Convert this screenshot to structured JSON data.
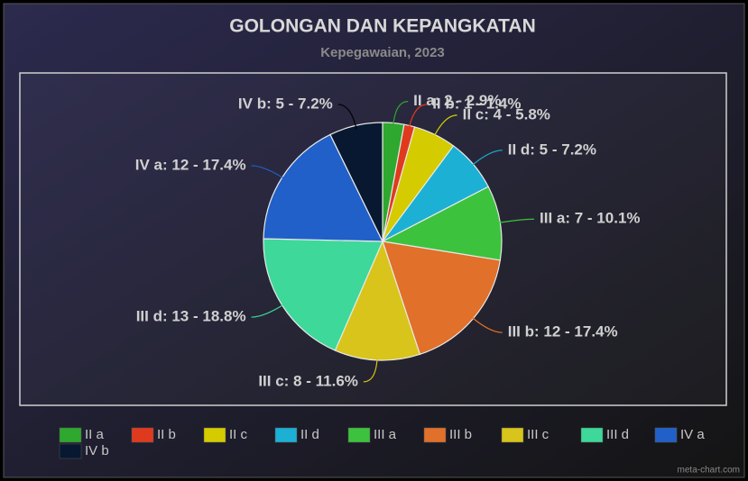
{
  "chart_data": {
    "type": "pie",
    "title": "GOLONGAN DAN KEPANGKATAN",
    "subtitle": "Kepegawaian, 2023",
    "categories": [
      "II a",
      "II b",
      "II c",
      "II d",
      "III a",
      "III b",
      "III c",
      "III d",
      "IV a",
      "IV b"
    ],
    "values": [
      2,
      1,
      4,
      5,
      7,
      12,
      8,
      13,
      12,
      5
    ],
    "value_labels": [
      "II a: 2 - 2.9%",
      "II b: 1 - 1.4%",
      "II c: 4 - 5.8%",
      "II d: 5 - 7.2%",
      "III a: 7 - 10.1%",
      "III b: 12 - 17.4%",
      "III c: 8 - 11.6%",
      "III d: 13 - 18.8%",
      "IV a: 12 - 17.4%",
      "IV b: 5 - 7.2%"
    ],
    "colors": [
      "#2ea82e",
      "#e03a1e",
      "#d4cc00",
      "#1cb0d4",
      "#3dc23d",
      "#e0702a",
      "#d8c41a",
      "#3dd89a",
      "#2060c8",
      "#081830"
    ],
    "legend": "bottom",
    "credit": "meta-chart.com"
  }
}
